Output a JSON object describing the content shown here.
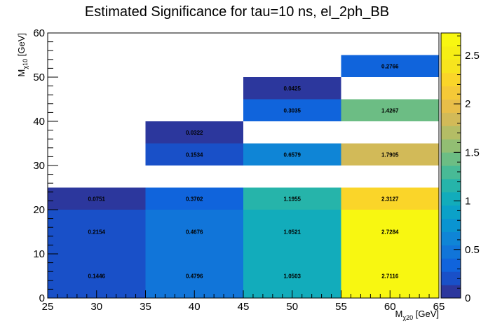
{
  "chart_data": {
    "type": "heatmap",
    "title": "Estimated Significance for tau=10 ns, el_2ph_BB",
    "xlabel": {
      "main": "M",
      "sub": "χ20",
      "unit": " [GeV]"
    },
    "ylabel": {
      "main": "M",
      "sub": "χ10",
      "unit": " [GeV]"
    },
    "xlim": [
      25,
      65
    ],
    "ylim": [
      0,
      60
    ],
    "zlim": [
      0,
      2.73
    ],
    "x_ticks": [
      25,
      30,
      35,
      40,
      45,
      50,
      55,
      60,
      65
    ],
    "y_ticks": [
      0,
      10,
      20,
      30,
      40,
      50,
      60
    ],
    "z_ticks": [
      0,
      0.5,
      1,
      1.5,
      2,
      2.5
    ],
    "z_tick_labels": [
      "0",
      "0.5",
      "1",
      "1.5",
      "2",
      "2.5"
    ],
    "colorbar": "parula",
    "cells": [
      {
        "x0": 25,
        "x1": 35,
        "y0": 0,
        "y1": 10,
        "value": 0.1446,
        "label": "0.1446"
      },
      {
        "x0": 25,
        "x1": 35,
        "y0": 10,
        "y1": 20,
        "value": 0.2154,
        "label": "0.2154"
      },
      {
        "x0": 25,
        "x1": 35,
        "y0": 20,
        "y1": 25,
        "value": 0.0751,
        "label": "0.0751"
      },
      {
        "x0": 35,
        "x1": 45,
        "y0": 0,
        "y1": 10,
        "value": 0.4796,
        "label": "0.4796"
      },
      {
        "x0": 35,
        "x1": 45,
        "y0": 10,
        "y1": 20,
        "value": 0.4676,
        "label": "0.4676"
      },
      {
        "x0": 35,
        "x1": 45,
        "y0": 20,
        "y1": 25,
        "value": 0.3702,
        "label": "0.3702"
      },
      {
        "x0": 35,
        "x1": 45,
        "y0": 30,
        "y1": 35,
        "value": 0.1534,
        "label": "0.1534"
      },
      {
        "x0": 35,
        "x1": 45,
        "y0": 35,
        "y1": 40,
        "value": 0.0322,
        "label": "0.0322"
      },
      {
        "x0": 45,
        "x1": 55,
        "y0": 0,
        "y1": 10,
        "value": 1.0503,
        "label": "1.0503"
      },
      {
        "x0": 45,
        "x1": 55,
        "y0": 10,
        "y1": 20,
        "value": 1.0521,
        "label": "1.0521"
      },
      {
        "x0": 45,
        "x1": 55,
        "y0": 20,
        "y1": 25,
        "value": 1.1955,
        "label": "1.1955"
      },
      {
        "x0": 45,
        "x1": 55,
        "y0": 30,
        "y1": 35,
        "value": 0.6579,
        "label": "0.6579"
      },
      {
        "x0": 45,
        "x1": 55,
        "y0": 40,
        "y1": 45,
        "value": 0.3035,
        "label": "0.3035"
      },
      {
        "x0": 45,
        "x1": 55,
        "y0": 45,
        "y1": 50,
        "value": 0.0425,
        "label": "0.0425"
      },
      {
        "x0": 55,
        "x1": 65,
        "y0": 0,
        "y1": 10,
        "value": 2.7116,
        "label": "2.7116"
      },
      {
        "x0": 55,
        "x1": 65,
        "y0": 10,
        "y1": 20,
        "value": 2.7284,
        "label": "2.7284"
      },
      {
        "x0": 55,
        "x1": 65,
        "y0": 20,
        "y1": 25,
        "value": 2.3127,
        "label": "2.3127"
      },
      {
        "x0": 55,
        "x1": 65,
        "y0": 30,
        "y1": 35,
        "value": 1.7905,
        "label": "1.7905"
      },
      {
        "x0": 55,
        "x1": 65,
        "y0": 40,
        "y1": 45,
        "value": 1.4267,
        "label": "1.4267"
      },
      {
        "x0": 55,
        "x1": 65,
        "y0": 50,
        "y1": 55,
        "value": 0.2766,
        "label": "0.2766"
      }
    ]
  }
}
